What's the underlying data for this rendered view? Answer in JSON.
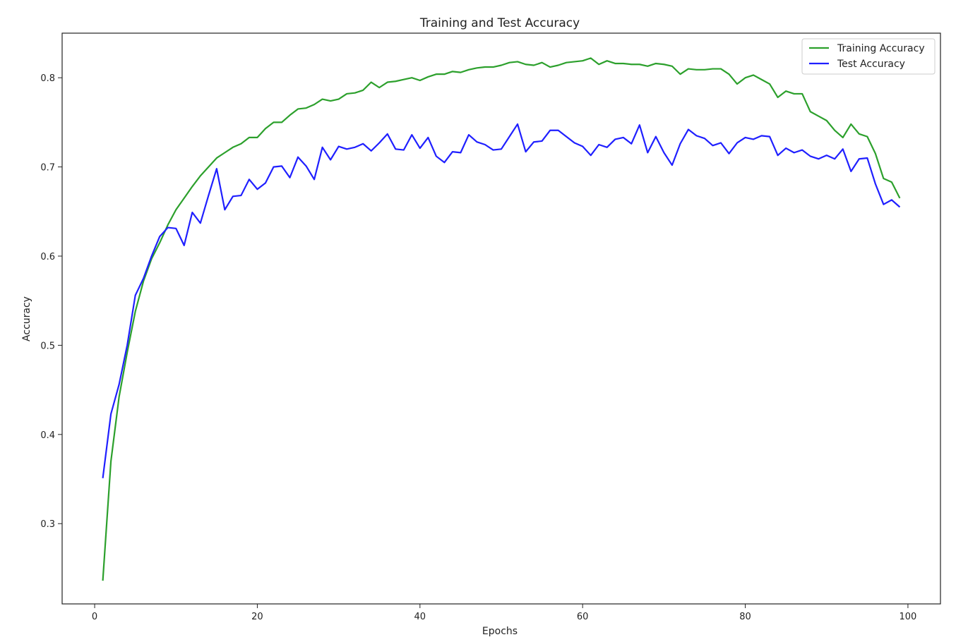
{
  "chart_data": {
    "type": "line",
    "title": "Training and Test Accuracy",
    "xlabel": "Epochs",
    "ylabel": "Accuracy",
    "xlim": [
      -4,
      104
    ],
    "ylim": [
      0.21,
      0.85
    ],
    "xticks": [
      0,
      20,
      40,
      60,
      80,
      100
    ],
    "yticks": [
      0.3,
      0.4,
      0.5,
      0.6,
      0.7,
      0.8
    ],
    "grid": false,
    "legend_position": "top-right",
    "x": [
      1,
      2,
      3,
      4,
      5,
      6,
      7,
      8,
      9,
      10,
      11,
      12,
      13,
      14,
      15,
      16,
      17,
      18,
      19,
      20,
      21,
      22,
      23,
      24,
      25,
      26,
      27,
      28,
      29,
      30,
      31,
      32,
      33,
      34,
      35,
      36,
      37,
      38,
      39,
      40,
      41,
      42,
      43,
      44,
      45,
      46,
      47,
      48,
      49,
      50,
      51,
      52,
      53,
      54,
      55,
      56,
      57,
      58,
      59,
      60,
      61,
      62,
      63,
      64,
      65,
      66,
      67,
      68,
      69,
      70,
      71,
      72,
      73,
      74,
      75,
      76,
      77,
      78,
      79,
      80,
      81,
      82,
      83,
      84,
      85,
      86,
      87,
      88,
      89,
      90,
      91,
      92,
      93,
      94,
      95,
      96,
      97,
      98,
      99
    ],
    "series": [
      {
        "name": "Training Accuracy",
        "color": "#2ca02c",
        "values": [
          0.236,
          0.37,
          0.442,
          0.492,
          0.538,
          0.572,
          0.597,
          0.615,
          0.635,
          0.652,
          0.665,
          0.678,
          0.69,
          0.7,
          0.71,
          0.716,
          0.722,
          0.726,
          0.733,
          0.733,
          0.743,
          0.75,
          0.75,
          0.758,
          0.765,
          0.766,
          0.77,
          0.776,
          0.774,
          0.776,
          0.782,
          0.783,
          0.786,
          0.795,
          0.789,
          0.795,
          0.796,
          0.798,
          0.8,
          0.797,
          0.801,
          0.804,
          0.804,
          0.807,
          0.806,
          0.809,
          0.811,
          0.812,
          0.812,
          0.814,
          0.817,
          0.818,
          0.815,
          0.814,
          0.817,
          0.812,
          0.814,
          0.817,
          0.818,
          0.819,
          0.822,
          0.815,
          0.819,
          0.816,
          0.816,
          0.815,
          0.815,
          0.813,
          0.816,
          0.815,
          0.813,
          0.804,
          0.81,
          0.809,
          0.809,
          0.81,
          0.81,
          0.804,
          0.793,
          0.8,
          0.803,
          0.798,
          0.793,
          0.778,
          0.785,
          0.782,
          0.782,
          0.762,
          0.757,
          0.752,
          0.741,
          0.733,
          0.748,
          0.737,
          0.734,
          0.715,
          0.687,
          0.683,
          0.665
        ]
      },
      {
        "name": "Test Accuracy",
        "color": "#1f1fff",
        "values": [
          0.351,
          0.423,
          0.456,
          0.5,
          0.556,
          0.575,
          0.6,
          0.622,
          0.632,
          0.631,
          0.612,
          0.649,
          0.637,
          0.668,
          0.698,
          0.652,
          0.667,
          0.668,
          0.686,
          0.675,
          0.682,
          0.7,
          0.701,
          0.688,
          0.711,
          0.701,
          0.686,
          0.722,
          0.708,
          0.723,
          0.72,
          0.722,
          0.726,
          0.718,
          0.727,
          0.737,
          0.72,
          0.719,
          0.736,
          0.721,
          0.733,
          0.712,
          0.705,
          0.717,
          0.716,
          0.736,
          0.728,
          0.725,
          0.719,
          0.72,
          0.734,
          0.748,
          0.717,
          0.728,
          0.729,
          0.741,
          0.741,
          0.734,
          0.727,
          0.723,
          0.713,
          0.725,
          0.722,
          0.731,
          0.733,
          0.726,
          0.747,
          0.716,
          0.734,
          0.716,
          0.702,
          0.726,
          0.742,
          0.735,
          0.732,
          0.724,
          0.727,
          0.715,
          0.727,
          0.733,
          0.731,
          0.735,
          0.734,
          0.713,
          0.721,
          0.716,
          0.719,
          0.712,
          0.709,
          0.713,
          0.709,
          0.72,
          0.695,
          0.709,
          0.71,
          0.681,
          0.658,
          0.663,
          0.655
        ]
      }
    ]
  }
}
